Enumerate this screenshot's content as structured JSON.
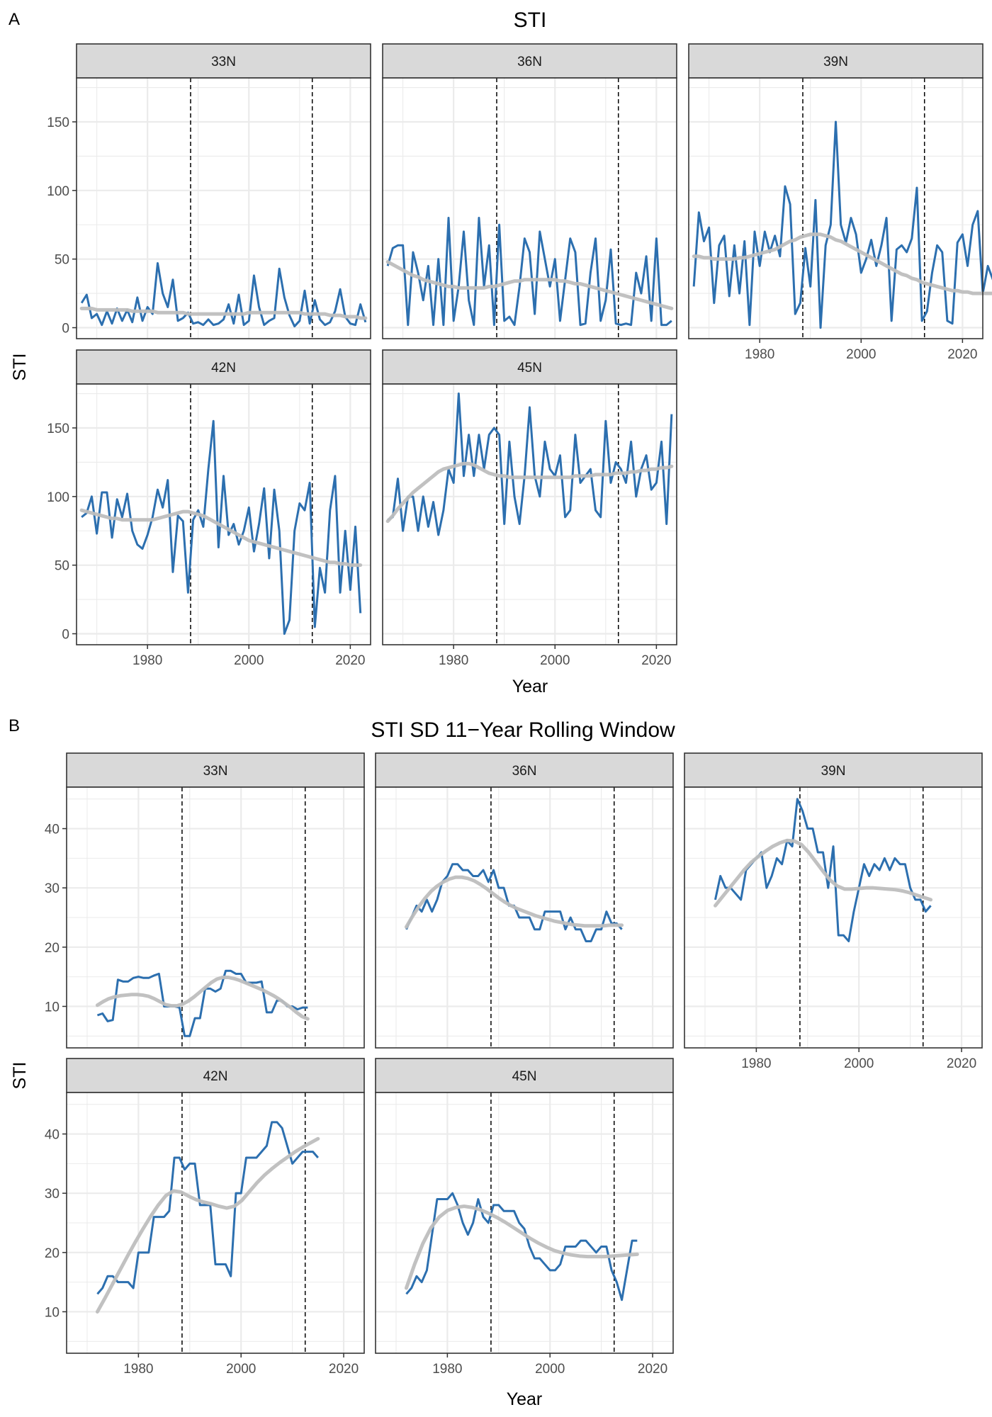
{
  "figure": {
    "panel_a_label": "A",
    "panel_b_label": "B"
  },
  "chart_data": [
    {
      "type": "line",
      "title": "STI",
      "xlabel": "Year",
      "ylabel": "STI",
      "xlim": [
        1966,
        2024
      ],
      "ylim": [
        -8,
        182
      ],
      "x_ticks": [
        1980,
        2000,
        2020
      ],
      "y_ticks": [
        0,
        50,
        100,
        150
      ],
      "vlines": [
        1988.5,
        2012.5
      ],
      "series_color": "#2c6faf",
      "smooth_color": "#bebebe",
      "grid": true,
      "x_start": 1967,
      "facets": [
        {
          "label": "33N",
          "values": [
            18,
            24,
            7,
            10,
            2,
            12,
            3,
            14,
            5,
            13,
            4,
            22,
            5,
            15,
            10,
            47,
            25,
            15,
            35,
            5,
            7,
            11,
            3,
            4,
            2,
            6,
            2,
            3,
            6,
            17,
            3,
            24,
            2,
            5,
            38,
            15,
            2,
            5,
            7,
            43,
            22,
            9,
            1,
            5,
            27,
            3,
            20,
            6,
            2,
            4,
            12,
            28,
            8,
            3,
            2,
            17,
            4
          ],
          "smooth": [
            14,
            14,
            14,
            13,
            13,
            13,
            13,
            13,
            13,
            13,
            12,
            12,
            12,
            12,
            12,
            11,
            11,
            11,
            11,
            11,
            11,
            10,
            10,
            10,
            10,
            10,
            10,
            10,
            10,
            10,
            10,
            10,
            10,
            11,
            11,
            11,
            11,
            11,
            11,
            11,
            11,
            11,
            11,
            11,
            10,
            10,
            10,
            10,
            10,
            9,
            9,
            9,
            8,
            8,
            8,
            7,
            7
          ]
        },
        {
          "label": "36N",
          "values": [
            45,
            58,
            60,
            60,
            2,
            55,
            40,
            20,
            45,
            2,
            50,
            2,
            80,
            5,
            30,
            70,
            20,
            2,
            80,
            30,
            60,
            2,
            75,
            5,
            8,
            2,
            30,
            65,
            55,
            10,
            70,
            50,
            30,
            50,
            5,
            35,
            65,
            55,
            2,
            3,
            40,
            65,
            5,
            20,
            57,
            3,
            2,
            3,
            2,
            40,
            25,
            52,
            5,
            65,
            2,
            2,
            5
          ],
          "smooth": [
            48,
            46,
            44,
            42,
            40,
            38,
            37,
            35,
            34,
            33,
            32,
            31,
            30,
            30,
            29,
            29,
            29,
            29,
            29,
            29,
            30,
            30,
            31,
            32,
            33,
            34,
            34,
            35,
            35,
            35,
            35,
            35,
            35,
            35,
            34,
            34,
            33,
            32,
            32,
            31,
            30,
            29,
            28,
            27,
            26,
            25,
            24,
            23,
            22,
            21,
            20,
            19,
            18,
            17,
            16,
            15,
            14
          ]
        },
        {
          "label": "39N",
          "values": [
            30,
            84,
            63,
            73,
            18,
            60,
            67,
            23,
            60,
            25,
            63,
            2,
            70,
            45,
            70,
            55,
            67,
            52,
            103,
            90,
            10,
            18,
            58,
            30,
            93,
            0,
            60,
            75,
            150,
            75,
            62,
            80,
            68,
            40,
            50,
            64,
            45,
            60,
            80,
            5,
            57,
            60,
            55,
            65,
            102,
            5,
            12,
            40,
            60,
            55,
            5,
            3,
            62,
            68,
            45,
            75,
            85,
            25,
            45,
            35,
            15,
            12
          ],
          "x_start_override": 1967,
          "smooth": [
            52,
            52,
            51,
            51,
            50,
            50,
            50,
            50,
            50,
            51,
            51,
            52,
            53,
            54,
            55,
            56,
            57,
            59,
            61,
            63,
            64,
            66,
            67,
            68,
            68,
            68,
            67,
            66,
            64,
            63,
            61,
            59,
            57,
            55,
            53,
            51,
            49,
            47,
            45,
            43,
            41,
            39,
            38,
            36,
            35,
            33,
            32,
            31,
            30,
            29,
            28,
            27,
            27,
            26,
            26,
            25,
            25,
            25,
            25,
            25,
            25,
            25
          ]
        },
        {
          "label": "42N",
          "values": [
            85,
            88,
            100,
            73,
            103,
            103,
            70,
            98,
            85,
            102,
            75,
            65,
            62,
            72,
            85,
            105,
            92,
            112,
            45,
            86,
            82,
            30,
            83,
            90,
            78,
            120,
            155,
            63,
            115,
            72,
            80,
            65,
            75,
            92,
            60,
            80,
            106,
            55,
            105,
            75,
            0,
            10,
            75,
            95,
            90,
            110,
            5,
            48,
            30,
            90,
            115,
            30,
            75,
            32,
            78,
            15
          ],
          "smooth": [
            90,
            89,
            88,
            87,
            86,
            85,
            84,
            84,
            83,
            83,
            83,
            83,
            83,
            83,
            83,
            84,
            85,
            86,
            87,
            88,
            89,
            89,
            88,
            87,
            86,
            84,
            82,
            80,
            78,
            76,
            74,
            72,
            70,
            68,
            67,
            66,
            65,
            64,
            63,
            62,
            61,
            60,
            59,
            58,
            57,
            56,
            55,
            54,
            53,
            52,
            52,
            51,
            51,
            50,
            50,
            50
          ]
        },
        {
          "label": "45N",
          "values": [
            83,
            85,
            113,
            75,
            100,
            100,
            75,
            100,
            78,
            96,
            72,
            90,
            120,
            110,
            175,
            115,
            145,
            115,
            145,
            120,
            145,
            150,
            145,
            80,
            140,
            100,
            80,
            115,
            165,
            115,
            100,
            140,
            120,
            115,
            130,
            85,
            90,
            145,
            110,
            115,
            120,
            90,
            85,
            155,
            110,
            125,
            120,
            110,
            140,
            100,
            120,
            130,
            105,
            110,
            140,
            80,
            160
          ],
          "smooth": [
            82,
            86,
            91,
            95,
            99,
            103,
            106,
            109,
            112,
            115,
            118,
            120,
            121,
            122,
            123,
            124,
            124,
            123,
            121,
            119,
            117,
            116,
            115,
            115,
            114,
            114,
            114,
            114,
            114,
            114,
            114,
            114,
            114,
            114,
            114,
            114,
            114,
            115,
            115,
            115,
            115,
            116,
            116,
            116,
            116,
            117,
            117,
            117,
            118,
            118,
            119,
            119,
            120,
            120,
            121,
            121,
            122
          ]
        }
      ]
    },
    {
      "type": "line",
      "title": "STI SD 11−Year Rolling Window",
      "xlabel": "Year",
      "ylabel": "STI",
      "xlim": [
        1966,
        2024
      ],
      "ylim": [
        3,
        47
      ],
      "x_ticks": [
        1980,
        2000,
        2020
      ],
      "y_ticks": [
        10,
        20,
        30,
        40
      ],
      "vlines": [
        1988.5,
        2012.5
      ],
      "series_color": "#2c6faf",
      "smooth_color": "#bebebe",
      "grid": true,
      "x_start": 1972,
      "facets": [
        {
          "label": "33N",
          "values": [
            8.5,
            8.8,
            7.5,
            7.7,
            14.5,
            14.2,
            14.2,
            14.8,
            15,
            14.8,
            14.8,
            15.2,
            15.5,
            10,
            10,
            10,
            9.8,
            5,
            5,
            8,
            8,
            13,
            13,
            12.5,
            13,
            16,
            16,
            15.5,
            15.5,
            14,
            14,
            14,
            14.2,
            9,
            9,
            11,
            11,
            10,
            10,
            9.5,
            9.8,
            9.8
          ],
          "smooth": [
            10.2,
            10.8,
            11.3,
            11.6,
            11.8,
            11.9,
            12,
            12,
            11.9,
            11.7,
            11.3,
            10.8,
            10.3,
            10.1,
            10.1,
            10.4,
            10.9,
            11.6,
            12.4,
            13.2,
            14,
            14.6,
            14.9,
            14.9,
            14.7,
            14.4,
            14,
            13.6,
            13.2,
            12.8,
            12.3,
            11.8,
            11.2,
            10.5,
            9.8,
            9,
            8.3,
            7.9
          ]
        },
        {
          "label": "36N",
          "values": [
            23,
            25,
            27,
            26,
            28,
            26,
            28,
            31,
            32,
            34,
            34,
            33,
            33,
            32,
            32,
            33,
            31,
            33,
            30,
            30,
            27,
            27,
            25,
            25,
            25,
            23,
            23,
            26,
            26,
            26,
            26,
            23,
            25,
            23,
            23,
            21,
            21,
            23,
            23,
            26,
            24,
            24,
            23
          ],
          "smooth": [
            23.4,
            25.2,
            26.8,
            28.2,
            29.4,
            30.3,
            31,
            31.5,
            31.8,
            31.8,
            31.6,
            31.2,
            30.6,
            29.9,
            29.1,
            28.3,
            27.6,
            27,
            26.5,
            26.1,
            25.7,
            25.3,
            25,
            24.7,
            24.4,
            24.2,
            24,
            23.8,
            23.7,
            23.6,
            23.6,
            23.6,
            23.6,
            23.7,
            23.7,
            23.7
          ]
        },
        {
          "label": "39N",
          "values": [
            28,
            32,
            30,
            30,
            29,
            28,
            33,
            34,
            35,
            36,
            30,
            32,
            35,
            34,
            38,
            37,
            45,
            43,
            40,
            40,
            36,
            36,
            30,
            37,
            22,
            22,
            21,
            26,
            30,
            34,
            32,
            34,
            33,
            35,
            33,
            35,
            34,
            34,
            30,
            28,
            28,
            26,
            27
          ],
          "smooth": [
            27,
            28.5,
            30,
            31.5,
            33,
            34.3,
            35.3,
            36.2,
            37,
            37.6,
            38,
            37.9,
            37.3,
            36,
            34.4,
            32.8,
            31.3,
            30.3,
            29.8,
            29.8,
            29.9,
            30,
            30,
            29.9,
            29.8,
            29.7,
            29.5,
            29.2,
            28.8,
            28.4,
            28
          ]
        },
        {
          "label": "42N",
          "values": [
            13,
            14,
            16,
            16,
            15,
            15,
            15,
            14,
            20,
            20,
            20,
            26,
            26,
            26,
            27,
            36,
            36,
            34,
            35,
            35,
            28,
            28,
            28,
            18,
            18,
            18,
            16,
            30,
            30,
            36,
            36,
            36,
            37,
            38,
            42,
            42,
            41,
            38,
            35,
            36,
            37,
            37,
            37,
            36
          ],
          "smooth": [
            10,
            12.3,
            14.7,
            17.1,
            19.5,
            21.8,
            24,
            26.1,
            28,
            29.6,
            30.4,
            30.2,
            29.5,
            28.9,
            28.5,
            28.2,
            27.8,
            27.5,
            27.8,
            28.8,
            30.3,
            31.8,
            33.1,
            34.2,
            35.2,
            36.1,
            37,
            37.8,
            38.5,
            39.2
          ]
        },
        {
          "label": "45N",
          "values": [
            13,
            14,
            16,
            15,
            17,
            23,
            29,
            29,
            29,
            30,
            28,
            25,
            23,
            25,
            29,
            26,
            25,
            28,
            28,
            27,
            27,
            27,
            25,
            24,
            21,
            19,
            19,
            18,
            17,
            17,
            18,
            21,
            21,
            21,
            22,
            22,
            21,
            20,
            21,
            21,
            17,
            15,
            12,
            17,
            22,
            22
          ],
          "smooth": [
            14,
            18,
            21.5,
            24.2,
            26,
            27.1,
            27.6,
            27.8,
            27.6,
            27.2,
            26.6,
            25.9,
            25.1,
            24.2,
            23.3,
            22.4,
            21.6,
            20.9,
            20.3,
            19.9,
            19.6,
            19.4,
            19.3,
            19.3,
            19.3,
            19.4,
            19.5,
            19.6,
            19.7
          ]
        }
      ]
    }
  ]
}
